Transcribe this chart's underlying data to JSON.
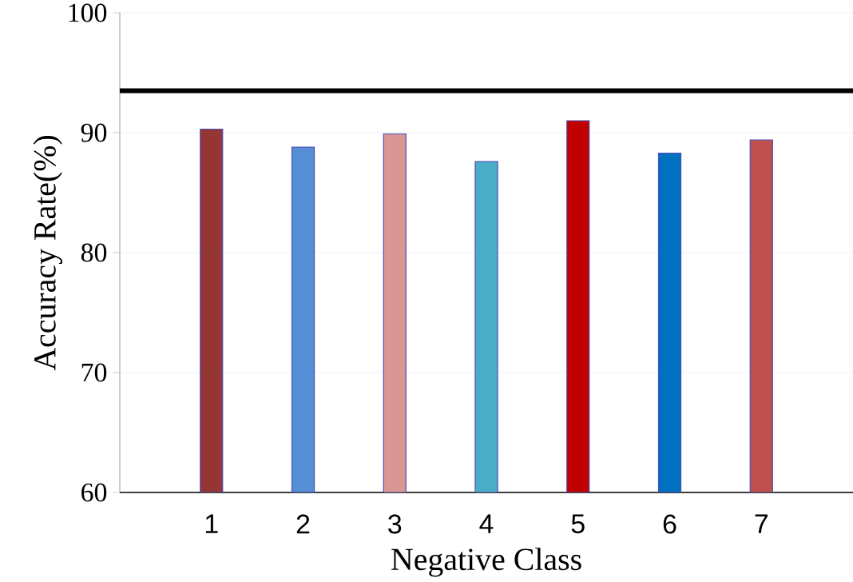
{
  "chart_data": {
    "type": "bar",
    "xlabel": "Negative Class",
    "ylabel": "Accuracy Rate(%)",
    "categories": [
      "1",
      "2",
      "3",
      "4",
      "5",
      "6",
      "7"
    ],
    "values": [
      90.3,
      88.8,
      89.9,
      87.6,
      91.0,
      88.3,
      89.4
    ],
    "colors": [
      "#943634",
      "#558ed5",
      "#d99694",
      "#4bacc6",
      "#c00000",
      "#0070c0",
      "#c0504d"
    ],
    "ylim": [
      60,
      100
    ],
    "yticks": [
      60,
      70,
      80,
      90,
      100
    ],
    "grid": "y",
    "ref_lines": [
      {
        "axis": "y",
        "value": 93.5,
        "color": "#000000"
      }
    ]
  }
}
